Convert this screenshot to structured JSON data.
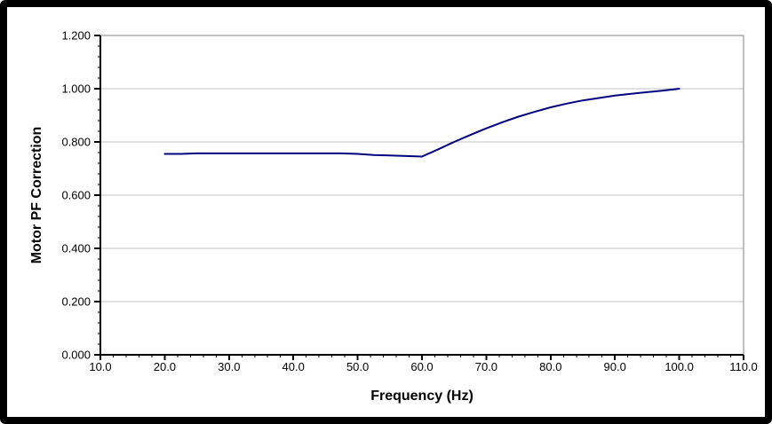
{
  "chart_data": {
    "type": "line",
    "title": "",
    "xlabel": "Frequency (Hz)",
    "ylabel": "Motor PF Correction",
    "xlim": [
      10,
      110
    ],
    "ylim": [
      0,
      1.2
    ],
    "x_major_step": 10,
    "x_minor_step": 2,
    "y_major_step": 0.2,
    "y_minor_step": 0.04,
    "x_tick_labels": [
      "10.0",
      "20.0",
      "30.0",
      "40.0",
      "50.0",
      "60.0",
      "70.0",
      "80.0",
      "90.0",
      "100.0",
      "110.0"
    ],
    "y_tick_labels": [
      "0.000",
      "0.200",
      "0.400",
      "0.600",
      "0.800",
      "1.000",
      "1.200"
    ],
    "grid": "horizontal-major-only",
    "legend_position": "none",
    "series": [
      {
        "name": "Motor PF Correction",
        "color": "#000080",
        "x": [
          20,
          22.5,
          25,
          27.5,
          30,
          32.5,
          35,
          37.5,
          40,
          42.5,
          45,
          47.5,
          50,
          52.5,
          55,
          57.5,
          60,
          62.5,
          65,
          67.5,
          70,
          72.5,
          75,
          77.5,
          80,
          82.5,
          85,
          87.5,
          90,
          92.5,
          95,
          97.5,
          100
        ],
        "y": [
          0.755,
          0.755,
          0.757,
          0.757,
          0.757,
          0.757,
          0.757,
          0.757,
          0.757,
          0.757,
          0.757,
          0.757,
          0.755,
          0.751,
          0.749,
          0.747,
          0.745,
          0.772,
          0.8,
          0.826,
          0.851,
          0.874,
          0.895,
          0.913,
          0.93,
          0.944,
          0.956,
          0.965,
          0.974,
          0.981,
          0.987,
          0.993,
          1.0
        ]
      }
    ],
    "colors": {
      "line": "#000080",
      "gridline": "#c0c0c0",
      "plot_border": "#808080",
      "axis": "#000000",
      "background": "#ffffff",
      "frame": "#000000"
    }
  }
}
